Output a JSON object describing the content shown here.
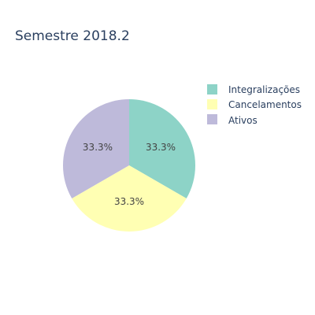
{
  "chart_data": {
    "type": "pie",
    "title": "Semestre 2018.2",
    "categories": [
      "Integralizações",
      "Cancelamentos",
      "Ativos"
    ],
    "values": [
      1,
      1,
      1
    ],
    "percent_labels": [
      "33.3%",
      "33.3%",
      "33.3%"
    ],
    "colors": [
      "#8dd3c7",
      "#ffffb3",
      "#bebada"
    ],
    "legend_position": "top-right",
    "start_angle_deg": 90,
    "direction": "clockwise"
  }
}
